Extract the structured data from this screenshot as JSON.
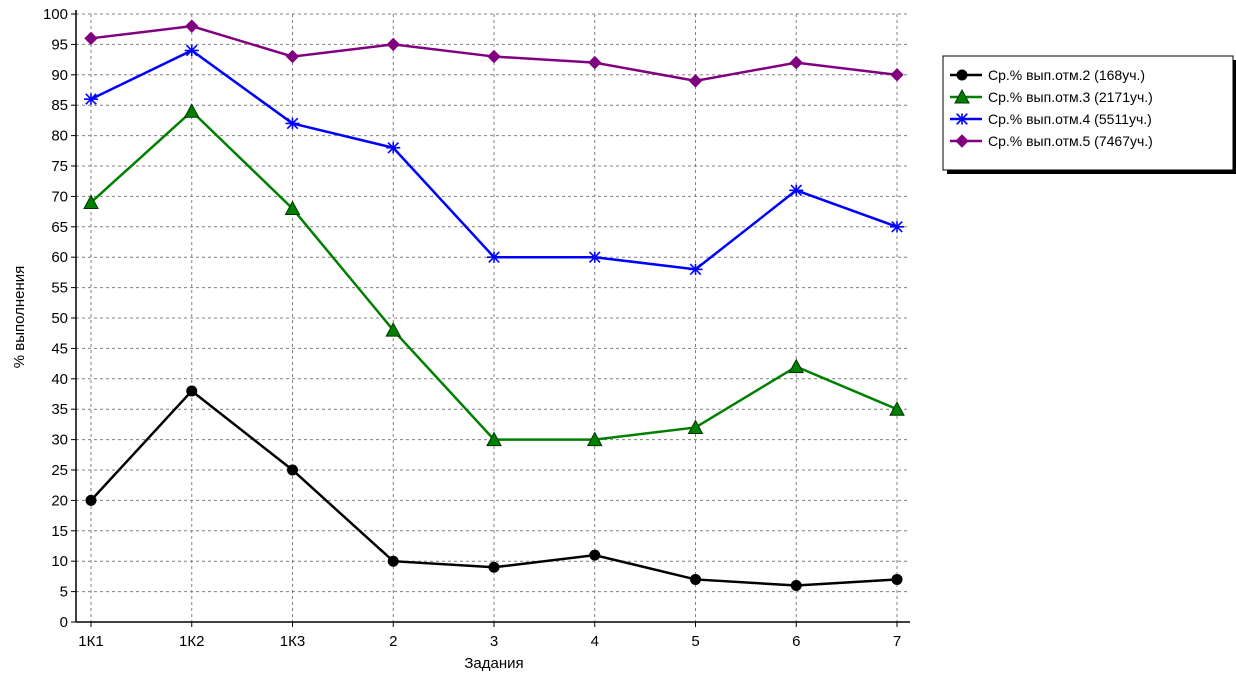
{
  "chart_data": {
    "type": "line",
    "title": "",
    "xlabel": "Задания",
    "ylabel": "% выполнения",
    "categories": [
      "1К1",
      "1К2",
      "1К3",
      "2",
      "3",
      "4",
      "5",
      "6",
      "7"
    ],
    "ylim": [
      0,
      100
    ],
    "yticks": [
      0,
      5,
      10,
      15,
      20,
      25,
      30,
      35,
      40,
      45,
      50,
      55,
      60,
      65,
      70,
      75,
      80,
      85,
      90,
      95,
      100
    ],
    "grid": true,
    "legend_position": "right",
    "series": [
      {
        "name": "Ср.% вып.отм.2 (168уч.)",
        "color": "#000000",
        "marker": "circle",
        "values": [
          20,
          38,
          25,
          10,
          9,
          11,
          7,
          6,
          7
        ]
      },
      {
        "name": "Ср.% вып.отм.3 (2171уч.)",
        "color": "#008000",
        "marker": "triangle",
        "values": [
          69,
          84,
          68,
          48,
          30,
          30,
          32,
          42,
          35
        ]
      },
      {
        "name": "Ср.% вып.отм.4 (5511уч.)",
        "color": "#0000ff",
        "marker": "asterisk",
        "values": [
          86,
          94,
          82,
          78,
          60,
          60,
          58,
          71,
          65
        ]
      },
      {
        "name": "Ср.% вып.отм.5 (7467уч.)",
        "color": "#800080",
        "marker": "diamond",
        "values": [
          96,
          98,
          93,
          95,
          93,
          92,
          89,
          92,
          90
        ]
      }
    ]
  }
}
